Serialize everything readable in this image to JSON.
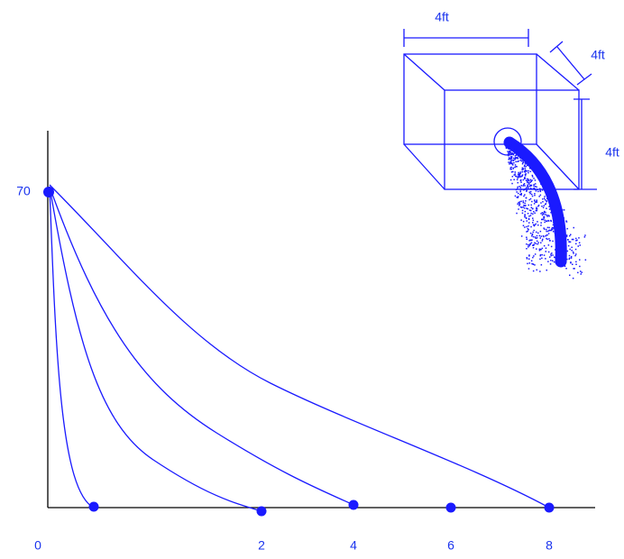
{
  "axis": {
    "y_label": "70",
    "x_labels": [
      "0",
      "2",
      "4",
      "6",
      "8"
    ]
  },
  "box": {
    "width_label": "4ft",
    "depth_label": "4ft",
    "height_label": "4ft"
  }
}
